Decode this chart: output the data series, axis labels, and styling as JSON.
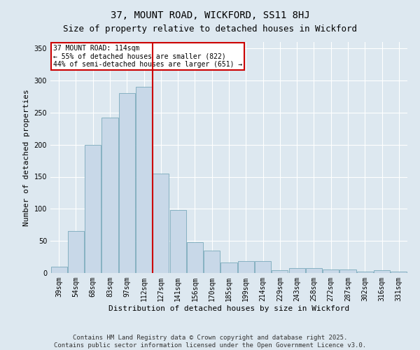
{
  "title1": "37, MOUNT ROAD, WICKFORD, SS11 8HJ",
  "title2": "Size of property relative to detached houses in Wickford",
  "xlabel": "Distribution of detached houses by size in Wickford",
  "ylabel": "Number of detached properties",
  "annotation_line1": "37 MOUNT ROAD: 114sqm",
  "annotation_line2": "← 55% of detached houses are smaller (822)",
  "annotation_line3": "44% of semi-detached houses are larger (651) →",
  "footer1": "Contains HM Land Registry data © Crown copyright and database right 2025.",
  "footer2": "Contains public sector information licensed under the Open Government Licence v3.0.",
  "categories": [
    "39sqm",
    "54sqm",
    "68sqm",
    "83sqm",
    "97sqm",
    "112sqm",
    "127sqm",
    "141sqm",
    "156sqm",
    "170sqm",
    "185sqm",
    "199sqm",
    "214sqm",
    "229sqm",
    "243sqm",
    "258sqm",
    "272sqm",
    "287sqm",
    "302sqm",
    "316sqm",
    "331sqm"
  ],
  "values": [
    10,
    65,
    200,
    242,
    280,
    290,
    155,
    98,
    48,
    35,
    16,
    19,
    19,
    4,
    8,
    8,
    5,
    5,
    2,
    4,
    2
  ],
  "bar_color": "#c8d8e8",
  "bar_edge_color": "#7aaabb",
  "vline_x": 5.5,
  "vline_color": "#cc0000",
  "annotation_box_color": "#cc0000",
  "ylim": [
    0,
    360
  ],
  "yticks": [
    0,
    50,
    100,
    150,
    200,
    250,
    300,
    350
  ],
  "fig_background": "#dde8f0",
  "plot_background": "#dde8f0",
  "title_fontsize": 10,
  "subtitle_fontsize": 9,
  "axis_label_fontsize": 8,
  "tick_fontsize": 7,
  "annotation_fontsize": 7,
  "footer_fontsize": 6.5
}
